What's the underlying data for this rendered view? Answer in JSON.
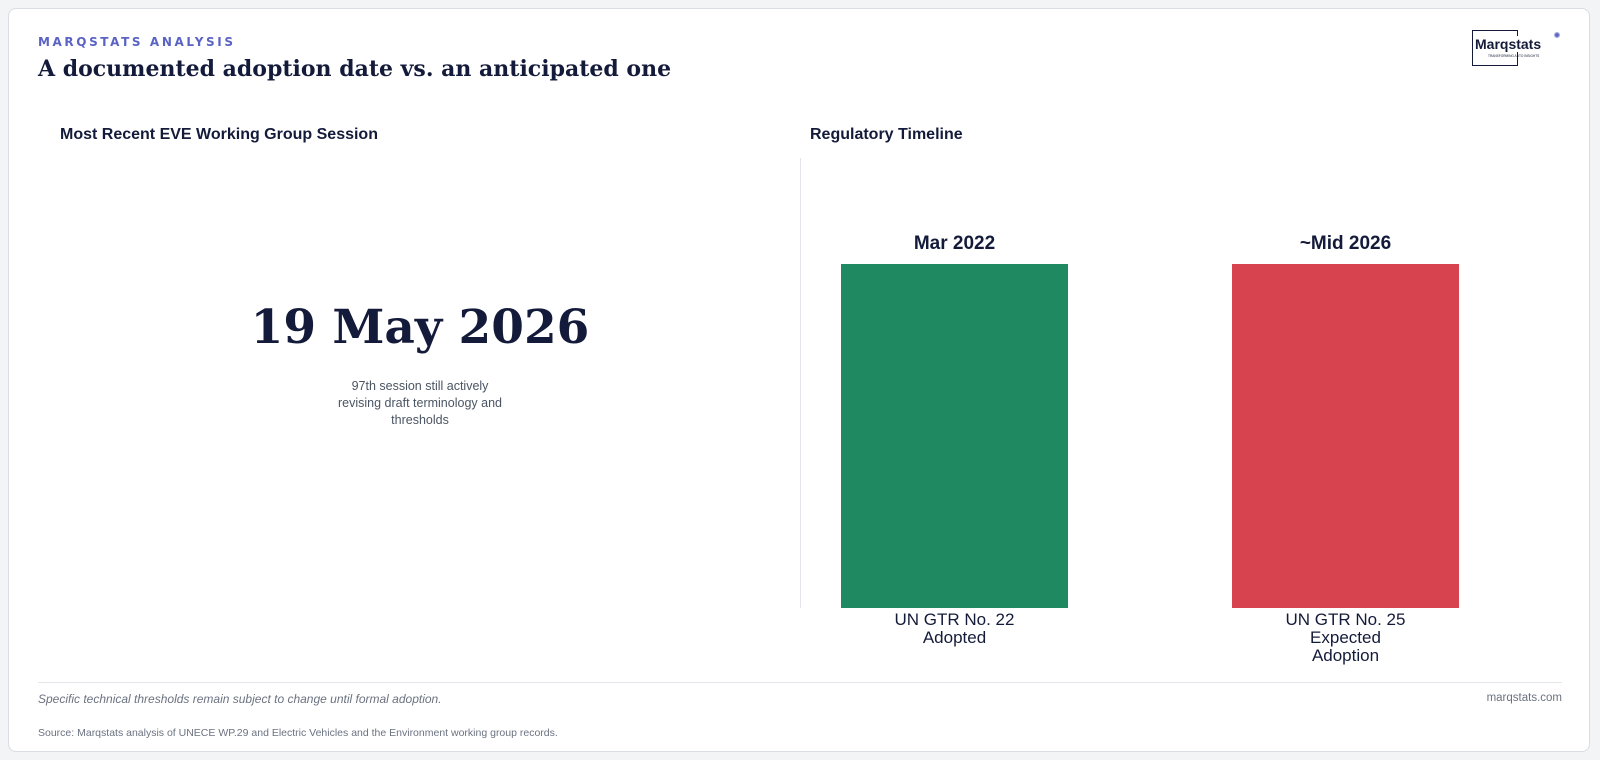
{
  "header": {
    "kicker": "MARQSTATS ANALYSIS",
    "title": "A documented adoption date vs. an anticipated one"
  },
  "logo": {
    "text": "Marqstats",
    "tagline": "TRANSFORMING AUTO INSIGHTS",
    "accent_color": "#5a63c4"
  },
  "left_panel": {
    "heading": "Most Recent EVE Working Group Session",
    "kpi_value": "19 May 2026",
    "kpi_note": "97th session still actively revising draft terminology and thresholds"
  },
  "right_panel": {
    "heading": "Regulatory Timeline"
  },
  "chart_data": {
    "type": "bar",
    "categories": [
      [
        "UN GTR No. 22",
        "Adopted"
      ],
      [
        "UN GTR No. 25",
        "Expected",
        "Adoption"
      ]
    ],
    "values": [
      1,
      1
    ],
    "data_labels": [
      "Mar 2022",
      "~Mid 2026"
    ],
    "colors": [
      "#1f8a61",
      "#d74450"
    ],
    "ylim": [
      0,
      1
    ],
    "grid": false,
    "legend": "none",
    "title": "",
    "xlabel": "",
    "ylabel": ""
  },
  "footer": {
    "note": "Specific technical thresholds remain subject to change until formal adoption.",
    "site": "marqstats.com",
    "source": "Source: Marqstats analysis of UNECE WP.29 and Electric Vehicles and the Environment working group records."
  }
}
